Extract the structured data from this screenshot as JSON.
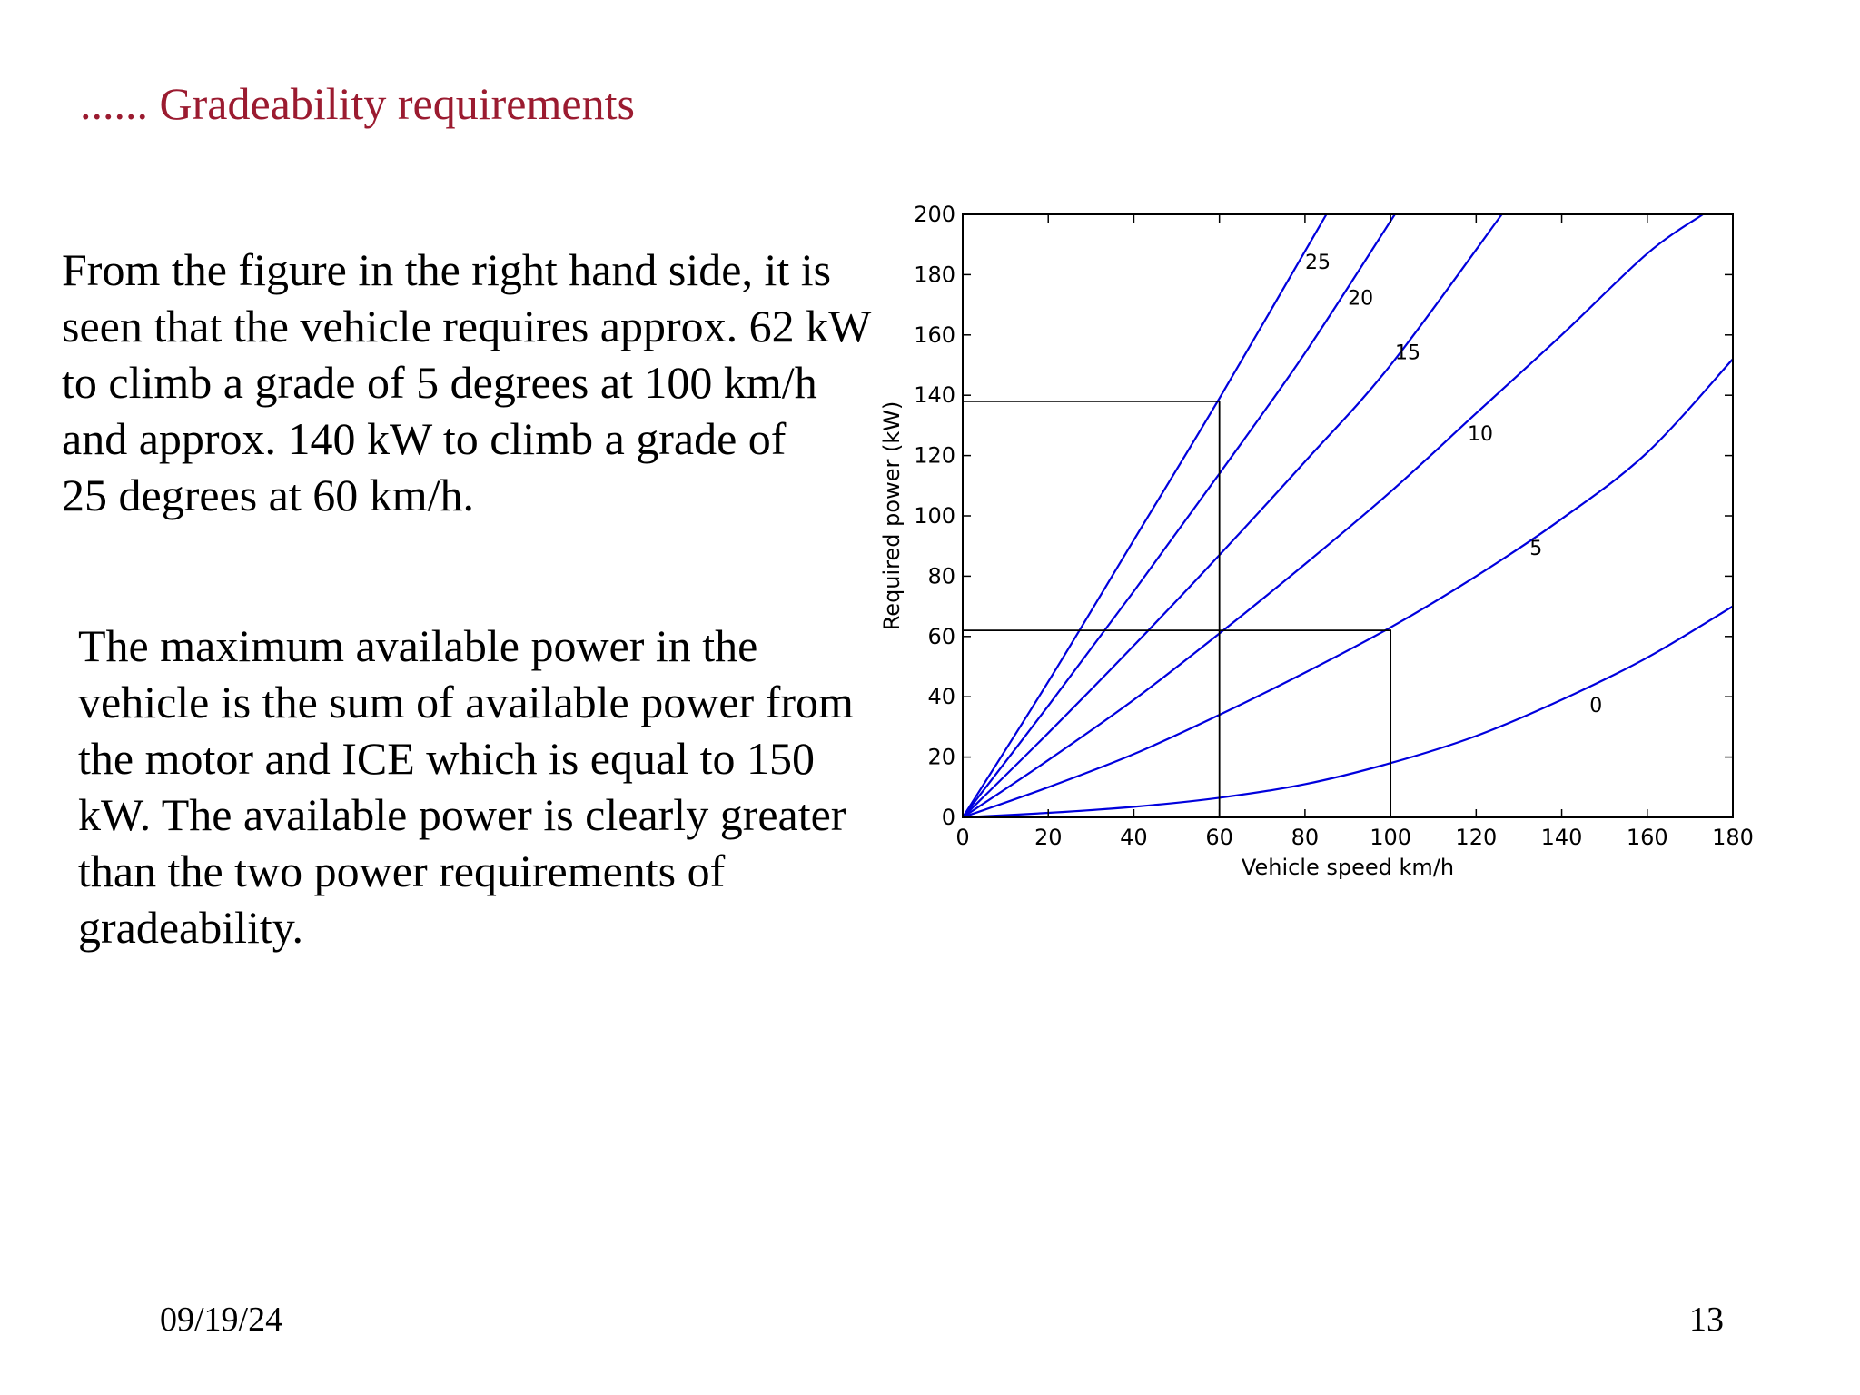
{
  "slide": {
    "title": "...... Gradeability requirements",
    "paragraph1": [
      "From the figure in the right hand side, it is",
      "seen that the vehicle requires approx. 62 kW",
      "to climb a grade of 5 degrees at 100 km/h",
      "and approx. 140 kW to climb a grade of",
      "25 degrees at 60 km/h."
    ],
    "paragraph2": [
      "The maximum available power in the",
      "vehicle is the sum of available power from",
      "the motor and ICE which is equal to 150",
      "kW. The available power is clearly greater",
      "than the two power requirements of",
      "gradeability."
    ],
    "footer_date": "09/19/24",
    "page_number": "13"
  },
  "colors": {
    "title": "#9b1b30",
    "series": "#0000dd",
    "axes": "#000000"
  },
  "chart_data": {
    "type": "line",
    "title": "",
    "xlabel": "Vehicle speed km/h",
    "ylabel": "Required power (kW)",
    "xlim": [
      0,
      180
    ],
    "ylim": [
      0,
      200
    ],
    "xticks": [
      "0",
      "20",
      "40",
      "60",
      "80",
      "100",
      "120",
      "140",
      "160",
      "180"
    ],
    "yticks": [
      "0",
      "20",
      "40",
      "60",
      "80",
      "100",
      "120",
      "140",
      "160",
      "180",
      "200"
    ],
    "grid": false,
    "legend": "none",
    "series": [
      {
        "name": "0",
        "x": [
          0,
          20,
          40,
          60,
          80,
          100,
          120,
          140,
          160,
          180
        ],
        "y": [
          0,
          1.5,
          3.5,
          6.5,
          11,
          18,
          27,
          39,
          53,
          70
        ]
      },
      {
        "name": "5",
        "x": [
          0,
          20,
          40,
          60,
          80,
          100,
          120,
          140,
          160,
          180
        ],
        "y": [
          0,
          10,
          21,
          34,
          48,
          63,
          80,
          99,
          121,
          152
        ]
      },
      {
        "name": "10",
        "x": [
          0,
          20,
          40,
          60,
          80,
          100,
          120,
          140,
          160,
          173
        ],
        "y": [
          0,
          19,
          39,
          61,
          84,
          108,
          134,
          160,
          187,
          200
        ]
      },
      {
        "name": "15",
        "x": [
          0,
          20,
          40,
          60,
          80,
          100,
          126
        ],
        "y": [
          0,
          28,
          57,
          87,
          118,
          150,
          200
        ]
      },
      {
        "name": "20",
        "x": [
          0,
          20,
          40,
          60,
          80,
          101
        ],
        "y": [
          0,
          37,
          75,
          114,
          154,
          200
        ]
      },
      {
        "name": "25",
        "x": [
          0,
          20,
          40,
          60,
          85
        ],
        "y": [
          0,
          45,
          92,
          139,
          200
        ]
      }
    ],
    "annotations": {
      "reference_lines": [
        {
          "x": 60,
          "y": 138
        },
        {
          "x": 100,
          "y": 62
        }
      ],
      "curve_labels": [
        {
          "text": "25",
          "x": 83,
          "y": 182
        },
        {
          "text": "20",
          "x": 93,
          "y": 170
        },
        {
          "text": "15",
          "x": 104,
          "y": 152
        },
        {
          "text": "10",
          "x": 121,
          "y": 125
        },
        {
          "text": "5",
          "x": 134,
          "y": 87
        },
        {
          "text": "0",
          "x": 148,
          "y": 35
        }
      ]
    }
  }
}
